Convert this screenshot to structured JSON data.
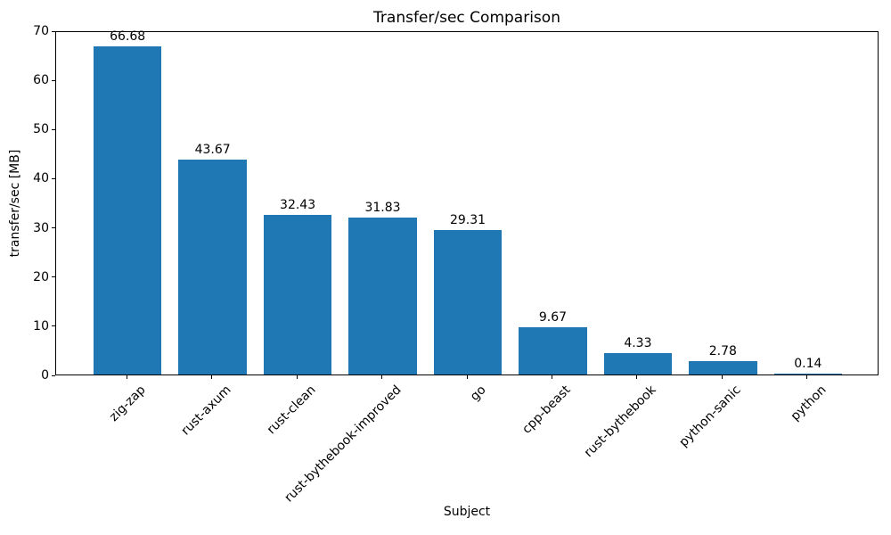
{
  "chart_data": {
    "type": "bar",
    "title": "Transfer/sec Comparison",
    "xlabel": "Subject",
    "ylabel": "transfer/sec [MB]",
    "categories": [
      "zig-zap",
      "rust-axum",
      "rust-clean",
      "rust-bythebook-improved",
      "go",
      "cpp-beast",
      "rust-bythebook",
      "python-sanic",
      "python"
    ],
    "values": [
      66.68,
      43.67,
      32.43,
      31.83,
      29.31,
      9.67,
      4.33,
      2.78,
      0.14
    ],
    "bar_value_labels": [
      "66.68",
      "43.67",
      "32.43",
      "31.83",
      "29.31",
      "9.67",
      "4.33",
      "2.78",
      "0.14"
    ],
    "ylim": [
      0,
      70
    ],
    "yticks": [
      0,
      10,
      20,
      30,
      40,
      50,
      60,
      70
    ],
    "x_tick_rotation_deg": 45,
    "grid": false,
    "legend": null,
    "bar_color": "#1f77b4",
    "axis_color": "#000000",
    "text_color": "#000000",
    "background_color": "#ffffff"
  }
}
